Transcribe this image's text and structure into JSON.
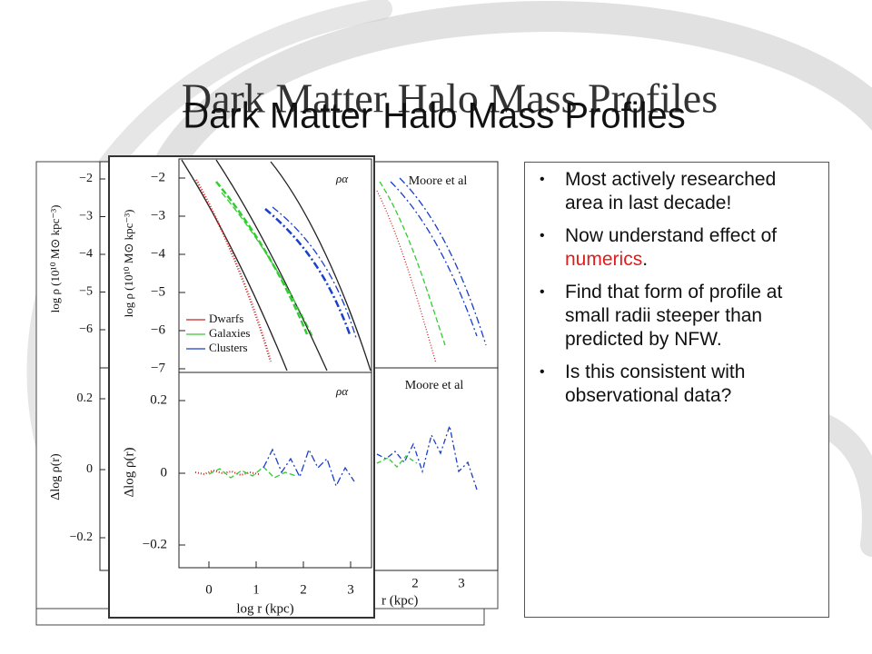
{
  "title": {
    "serif": "Dark Matter Halo Mass Profiles",
    "sans": "Dark Matter Halo Mass Profiles"
  },
  "bullets": [
    [
      "Most actively researched area in last decade!"
    ],
    [
      "Now understand effect of ",
      "numerics",
      "."
    ],
    [
      "Find that form of profile at small radii steeper than predicted by NFW."
    ],
    [
      "Is this consistent with observational data?"
    ]
  ],
  "figure_back_left": {
    "y_label": "log ρ (10¹⁰ M⊙ kpc⁻³)",
    "residual_label": "Δlog ρ(r)",
    "density_ticks": [
      "−2",
      "−3",
      "−4",
      "−5",
      "−6"
    ],
    "residual_ticks": [
      "0.2",
      "0",
      "−0.2"
    ]
  },
  "figure_back_right": {
    "panel_label_top": "Moore et al",
    "panel_label_bottom": "Moore et al",
    "x_ticks": [
      "2",
      "3"
    ],
    "x_label": "r (kpc)"
  },
  "figure_front": {
    "y_label": "log ρ (10¹⁰ M⊙ kpc⁻³)",
    "residual_label": "Δlog ρ(r)",
    "density_ticks": [
      "−2",
      "−3",
      "−4",
      "−5",
      "−6",
      "−7"
    ],
    "residual_ticks": [
      "0.2",
      "0",
      "−0.2"
    ],
    "x_ticks": [
      "0",
      "1",
      "2",
      "3"
    ],
    "x_label": "log r (kpc)",
    "panel_label_top": "ρα",
    "panel_label_bottom": "ρα",
    "legend": [
      "Dwarfs",
      "Galaxies",
      "Clusters"
    ]
  }
}
